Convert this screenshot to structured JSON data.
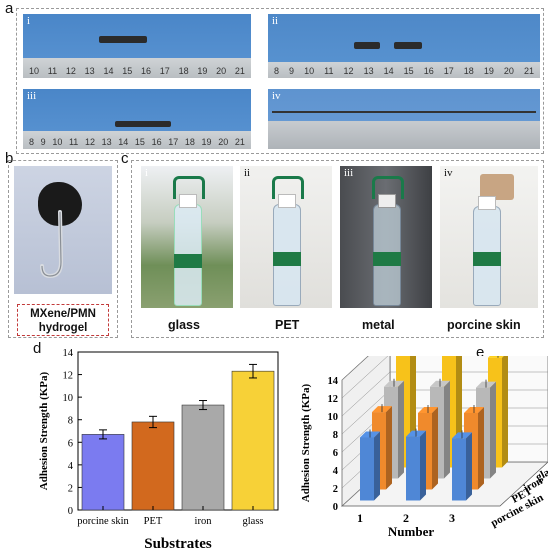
{
  "panel_labels": {
    "a": "a",
    "b": "b",
    "c": "c",
    "d": "d",
    "e": "e"
  },
  "panel_a": {
    "sub": [
      "i",
      "ii",
      "iii",
      "iv"
    ],
    "ruler_numbers_i": [
      "10",
      "11",
      "12",
      "13",
      "14",
      "15",
      "16",
      "17",
      "18",
      "19",
      "20",
      "21"
    ],
    "ruler_numbers_ii": [
      "8",
      "9",
      "10",
      "11",
      "12",
      "13",
      "14",
      "15",
      "16",
      "17",
      "18",
      "19",
      "20",
      "21"
    ],
    "ruler_numbers_iii": [
      "8",
      "9",
      "10",
      "11",
      "12",
      "13",
      "14",
      "15",
      "16",
      "17",
      "18",
      "19",
      "20",
      "21"
    ]
  },
  "panel_b": {
    "caption": "MXene/PMN\nhydrogel",
    "caption_line1": "MXene/PMN",
    "caption_line2": "hydrogel"
  },
  "panel_c": {
    "sub": [
      "i",
      "ii",
      "iii",
      "iv"
    ],
    "captions": [
      "glass",
      "PET",
      "metal",
      "porcine skin"
    ]
  },
  "colors": {
    "blue": "#7b7bf0",
    "orange": "#d2691e",
    "gray": "#a9a9a9",
    "yellow": "#f7d137",
    "e_blue": "#4f87d6",
    "e_orange": "#f08a2c",
    "e_gray": "#b8b8b8",
    "e_yellow": "#f7c21a"
  },
  "chart_data": [
    {
      "type": "bar",
      "categories": [
        "porcine skin",
        "PET",
        "iron",
        "glass"
      ],
      "values": [
        6.7,
        7.8,
        9.3,
        12.3
      ],
      "errors": [
        0.4,
        0.5,
        0.4,
        0.6
      ],
      "xlabel": "Substrates",
      "ylabel": "Adhesion Strength (KPa)",
      "ylim": [
        0,
        14
      ],
      "yticks": [
        "0",
        "2",
        "4",
        "6",
        "8",
        "10",
        "12",
        "14"
      ]
    },
    {
      "type": "bar",
      "subtype": "3d",
      "categories": [
        "1",
        "2",
        "3"
      ],
      "series": [
        {
          "name": "porcine skin",
          "values": [
            7.0,
            7.1,
            6.9
          ]
        },
        {
          "name": "PET",
          "values": [
            8.6,
            8.5,
            8.5
          ]
        },
        {
          "name": "iron",
          "values": [
            10.2,
            10.2,
            10.1
          ]
        },
        {
          "name": "glass",
          "values": [
            12.6,
            12.6,
            12.2
          ]
        }
      ],
      "xlabel": "Number",
      "ylabel": "Adhesion Strength (KPa)",
      "ylim": [
        0,
        14
      ],
      "yticks": [
        "0",
        "2",
        "4",
        "6",
        "8",
        "10",
        "12",
        "14"
      ]
    }
  ]
}
